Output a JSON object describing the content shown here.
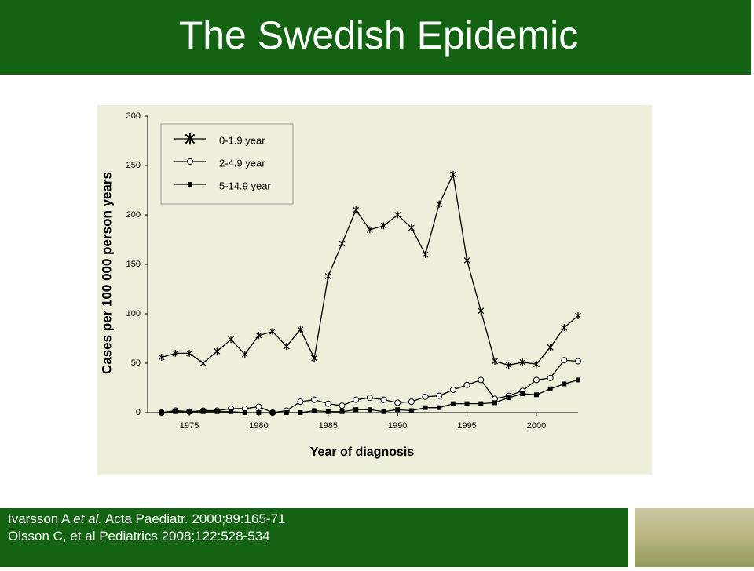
{
  "header": {
    "title": "The Swedish Epidemic"
  },
  "chart_data": {
    "type": "line",
    "x_label": "Year of diagnosis",
    "y_label": "Cases per 100 000 person years",
    "x": [
      1973,
      1974,
      1975,
      1976,
      1977,
      1978,
      1979,
      1980,
      1981,
      1982,
      1983,
      1984,
      1985,
      1986,
      1987,
      1988,
      1989,
      1990,
      1991,
      1992,
      1993,
      1994,
      1995,
      1996,
      1997,
      1998,
      1999,
      2000,
      2001,
      2002,
      2003
    ],
    "xlim": [
      1972,
      2003
    ],
    "xticks": [
      1975,
      1980,
      1985,
      1990,
      1995,
      2000
    ],
    "ylim": [
      0,
      300
    ],
    "yticks": [
      0,
      50,
      100,
      150,
      200,
      250,
      300
    ],
    "legend": "top-left",
    "series": [
      {
        "name": "0-1.9 year",
        "color": "#000000",
        "marker": "x",
        "values": [
          56,
          60,
          60,
          50,
          62,
          74,
          59,
          78,
          82,
          67,
          84,
          55,
          138,
          171,
          205,
          185,
          189,
          200,
          187,
          160,
          211,
          241,
          154,
          103,
          52,
          48,
          51,
          49,
          66,
          86,
          98
        ]
      },
      {
        "name": "2-4.9 year",
        "color": "#000000",
        "marker": "circle",
        "values": [
          0,
          2,
          1,
          2,
          2,
          4,
          4,
          6,
          0,
          2,
          11,
          13,
          9,
          7,
          13,
          15,
          13,
          10,
          11,
          16,
          17,
          23,
          28,
          33,
          14,
          17,
          22,
          33,
          35,
          53,
          52
        ]
      },
      {
        "name": "5-14.9 year",
        "color": "#000000",
        "marker": "square",
        "values": [
          0,
          1,
          1,
          1,
          1,
          1,
          0,
          0,
          0,
          0,
          0,
          2,
          1,
          1,
          3,
          3,
          1,
          3,
          2,
          5,
          5,
          9,
          9,
          9,
          10,
          15,
          19,
          18,
          24,
          29,
          33
        ]
      }
    ]
  },
  "footer": {
    "citations": [
      {
        "pre": "Ivarsson A ",
        "italic": "et al.",
        "post": " Acta Paediatr. 2000;89:165-71"
      },
      {
        "pre": "Olsson C, et al Pediatrics 2008;122:528-534"
      }
    ]
  }
}
